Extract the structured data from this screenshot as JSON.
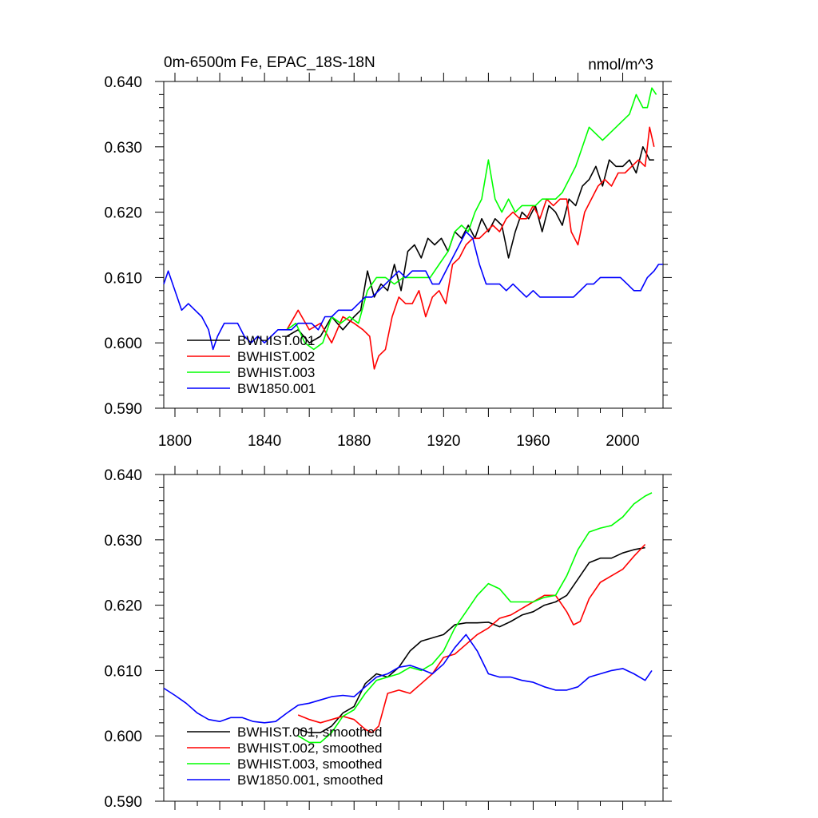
{
  "chart_data": [
    {
      "type": "line",
      "title": "0m-6500m Fe, EPAC_18S-18N",
      "units": "nmol/m^3",
      "xlim": [
        1795,
        2018
      ],
      "ylim": [
        0.59,
        0.64
      ],
      "xticks": [
        "1800",
        "1840",
        "1880",
        "1920",
        "1960",
        "2000"
      ],
      "yticks": [
        "0.590",
        "0.600",
        "0.610",
        "0.620",
        "0.630",
        "0.640"
      ],
      "legend_position": "bottom-left",
      "series": [
        {
          "name": "BWHIST.001",
          "color": "#000000",
          "x": [
            1850,
            1855,
            1860,
            1865,
            1870,
            1875,
            1880,
            1883,
            1886,
            1889,
            1892,
            1895,
            1898,
            1901,
            1904,
            1907,
            1910,
            1913,
            1916,
            1919,
            1922,
            1925,
            1928,
            1931,
            1934,
            1937,
            1940,
            1943,
            1946,
            1949,
            1952,
            1955,
            1958,
            1961,
            1964,
            1967,
            1970,
            1973,
            1976,
            1979,
            1982,
            1985,
            1988,
            1991,
            1994,
            1997,
            2000,
            2003,
            2006,
            2009,
            2012,
            2014
          ],
          "y": [
            0.601,
            0.602,
            0.6,
            0.601,
            0.604,
            0.602,
            0.604,
            0.605,
            0.611,
            0.607,
            0.609,
            0.608,
            0.612,
            0.608,
            0.614,
            0.615,
            0.613,
            0.616,
            0.615,
            0.616,
            0.614,
            0.617,
            0.616,
            0.618,
            0.616,
            0.619,
            0.617,
            0.619,
            0.618,
            0.613,
            0.617,
            0.62,
            0.619,
            0.621,
            0.617,
            0.621,
            0.62,
            0.618,
            0.622,
            0.621,
            0.624,
            0.625,
            0.627,
            0.624,
            0.628,
            0.627,
            0.627,
            0.628,
            0.626,
            0.63,
            0.628,
            0.628
          ]
        },
        {
          "name": "BWHIST.002",
          "color": "#ff0000",
          "x": [
            1850,
            1855,
            1860,
            1865,
            1870,
            1875,
            1880,
            1884,
            1887,
            1889,
            1891,
            1894,
            1897,
            1900,
            1903,
            1906,
            1909,
            1912,
            1915,
            1918,
            1921,
            1924,
            1927,
            1930,
            1933,
            1936,
            1939,
            1942,
            1945,
            1948,
            1951,
            1954,
            1957,
            1960,
            1963,
            1966,
            1969,
            1972,
            1975,
            1977,
            1980,
            1983,
            1986,
            1989,
            1992,
            1995,
            1998,
            2001,
            2004,
            2007,
            2010,
            2012,
            2014
          ],
          "y": [
            0.602,
            0.605,
            0.602,
            0.603,
            0.6,
            0.604,
            0.603,
            0.602,
            0.601,
            0.596,
            0.598,
            0.599,
            0.604,
            0.607,
            0.606,
            0.606,
            0.608,
            0.604,
            0.607,
            0.608,
            0.606,
            0.612,
            0.613,
            0.615,
            0.616,
            0.616,
            0.617,
            0.618,
            0.617,
            0.619,
            0.62,
            0.619,
            0.619,
            0.621,
            0.619,
            0.622,
            0.621,
            0.622,
            0.622,
            0.617,
            0.615,
            0.62,
            0.622,
            0.624,
            0.625,
            0.624,
            0.626,
            0.626,
            0.627,
            0.628,
            0.627,
            0.633,
            0.63
          ]
        },
        {
          "name": "BWHIST.003",
          "color": "#00ff00",
          "x": [
            1850,
            1854,
            1858,
            1862,
            1866,
            1870,
            1874,
            1878,
            1882,
            1886,
            1890,
            1894,
            1898,
            1902,
            1906,
            1910,
            1914,
            1918,
            1922,
            1925,
            1928,
            1931,
            1934,
            1937,
            1940,
            1943,
            1946,
            1949,
            1952,
            1955,
            1958,
            1961,
            1964,
            1967,
            1970,
            1973,
            1976,
            1979,
            1982,
            1985,
            1988,
            1991,
            1994,
            1997,
            2000,
            2003,
            2006,
            2009,
            2011,
            2013,
            2015
          ],
          "y": [
            0.602,
            0.603,
            0.6,
            0.599,
            0.6,
            0.604,
            0.603,
            0.604,
            0.603,
            0.608,
            0.61,
            0.61,
            0.609,
            0.61,
            0.61,
            0.61,
            0.61,
            0.612,
            0.614,
            0.617,
            0.618,
            0.617,
            0.62,
            0.622,
            0.628,
            0.622,
            0.62,
            0.622,
            0.62,
            0.621,
            0.621,
            0.621,
            0.622,
            0.622,
            0.622,
            0.623,
            0.625,
            0.627,
            0.63,
            0.633,
            0.632,
            0.631,
            0.632,
            0.633,
            0.634,
            0.635,
            0.638,
            0.636,
            0.636,
            0.639,
            0.638
          ]
        },
        {
          "name": "BW1850.001",
          "color": "#0000ff",
          "x": [
            1795,
            1797,
            1799,
            1801,
            1803,
            1806,
            1809,
            1812,
            1815,
            1817,
            1819,
            1822,
            1825,
            1828,
            1831,
            1834,
            1837,
            1840,
            1843,
            1846,
            1849,
            1852,
            1855,
            1858,
            1861,
            1864,
            1867,
            1870,
            1873,
            1876,
            1879,
            1882,
            1885,
            1888,
            1891,
            1894,
            1897,
            1900,
            1903,
            1906,
            1909,
            1912,
            1915,
            1918,
            1921,
            1924,
            1927,
            1930,
            1933,
            1936,
            1939,
            1942,
            1945,
            1948,
            1951,
            1954,
            1957,
            1960,
            1963,
            1966,
            1969,
            1972,
            1975,
            1978,
            1981,
            1984,
            1987,
            1990,
            1993,
            1996,
            1999,
            2002,
            2005,
            2008,
            2011,
            2014,
            2016,
            2018
          ],
          "y": [
            0.609,
            0.611,
            0.609,
            0.607,
            0.605,
            0.606,
            0.605,
            0.604,
            0.602,
            0.599,
            0.601,
            0.603,
            0.603,
            0.603,
            0.601,
            0.6,
            0.601,
            0.6,
            0.601,
            0.602,
            0.602,
            0.602,
            0.603,
            0.603,
            0.603,
            0.602,
            0.604,
            0.604,
            0.605,
            0.605,
            0.605,
            0.606,
            0.607,
            0.607,
            0.608,
            0.609,
            0.61,
            0.611,
            0.61,
            0.611,
            0.611,
            0.611,
            0.609,
            0.609,
            0.611,
            0.613,
            0.615,
            0.617,
            0.616,
            0.612,
            0.609,
            0.609,
            0.609,
            0.608,
            0.609,
            0.608,
            0.607,
            0.608,
            0.607,
            0.607,
            0.607,
            0.607,
            0.607,
            0.607,
            0.608,
            0.609,
            0.609,
            0.61,
            0.61,
            0.61,
            0.61,
            0.609,
            0.608,
            0.608,
            0.61,
            0.611,
            0.612,
            0.612
          ]
        }
      ]
    },
    {
      "type": "line",
      "xlim": [
        1795,
        2018
      ],
      "ylim": [
        0.59,
        0.64
      ],
      "yticks": [
        "0.590",
        "0.600",
        "0.610",
        "0.620",
        "0.630",
        "0.640"
      ],
      "legend_position": "bottom-left",
      "series": [
        {
          "name": "BWHIST.001, smoothed",
          "color": "#000000",
          "x": [
            1855,
            1860,
            1865,
            1870,
            1875,
            1880,
            1885,
            1890,
            1895,
            1900,
            1905,
            1910,
            1915,
            1920,
            1925,
            1930,
            1935,
            1940,
            1945,
            1950,
            1955,
            1960,
            1965,
            1970,
            1975,
            1980,
            1985,
            1990,
            1995,
            2000,
            2005,
            2010
          ],
          "y": [
            0.601,
            0.6005,
            0.6005,
            0.6015,
            0.6035,
            0.6045,
            0.608,
            0.6095,
            0.609,
            0.6105,
            0.613,
            0.6145,
            0.615,
            0.6155,
            0.617,
            0.6173,
            0.6173,
            0.6174,
            0.6167,
            0.6175,
            0.6185,
            0.619,
            0.62,
            0.6205,
            0.6215,
            0.624,
            0.6265,
            0.6272,
            0.6272,
            0.628,
            0.6285,
            0.6288
          ]
        },
        {
          "name": "BWHIST.002, smoothed",
          "color": "#ff0000",
          "x": [
            1855,
            1860,
            1865,
            1870,
            1875,
            1880,
            1885,
            1888,
            1891,
            1895,
            1900,
            1905,
            1910,
            1915,
            1920,
            1925,
            1930,
            1935,
            1940,
            1945,
            1950,
            1955,
            1960,
            1965,
            1970,
            1975,
            1978,
            1981,
            1985,
            1990,
            1995,
            2000,
            2005,
            2010
          ],
          "y": [
            0.6032,
            0.6025,
            0.602,
            0.6025,
            0.603,
            0.6025,
            0.601,
            0.6005,
            0.6015,
            0.6065,
            0.607,
            0.6065,
            0.608,
            0.6095,
            0.612,
            0.6125,
            0.614,
            0.6155,
            0.6165,
            0.618,
            0.6185,
            0.6195,
            0.6205,
            0.6215,
            0.6215,
            0.619,
            0.617,
            0.6175,
            0.621,
            0.6235,
            0.6245,
            0.6255,
            0.6275,
            0.6293
          ]
        },
        {
          "name": "BWHIST.003, smoothed",
          "color": "#00ff00",
          "x": [
            1855,
            1860,
            1865,
            1870,
            1875,
            1880,
            1885,
            1890,
            1895,
            1900,
            1905,
            1910,
            1915,
            1920,
            1925,
            1930,
            1935,
            1940,
            1945,
            1950,
            1955,
            1960,
            1965,
            1970,
            1975,
            1980,
            1985,
            1990,
            1995,
            2000,
            2005,
            2010,
            2013
          ],
          "y": [
            0.6,
            0.599,
            0.599,
            0.6005,
            0.603,
            0.604,
            0.6065,
            0.6085,
            0.609,
            0.6095,
            0.6105,
            0.61,
            0.611,
            0.613,
            0.6165,
            0.619,
            0.6215,
            0.6233,
            0.6225,
            0.6205,
            0.6205,
            0.6205,
            0.6212,
            0.6215,
            0.6245,
            0.6285,
            0.6312,
            0.6318,
            0.6322,
            0.6335,
            0.6355,
            0.6367,
            0.6372
          ]
        },
        {
          "name": "BW1850.001, smoothed",
          "color": "#0000ff",
          "x": [
            1795,
            1800,
            1805,
            1810,
            1815,
            1820,
            1825,
            1830,
            1835,
            1840,
            1845,
            1850,
            1855,
            1860,
            1865,
            1870,
            1875,
            1880,
            1885,
            1890,
            1895,
            1900,
            1905,
            1910,
            1915,
            1920,
            1925,
            1930,
            1935,
            1940,
            1945,
            1950,
            1955,
            1960,
            1965,
            1970,
            1975,
            1980,
            1985,
            1990,
            1995,
            2000,
            2005,
            2010,
            2013
          ],
          "y": [
            0.6073,
            0.6062,
            0.605,
            0.6035,
            0.6025,
            0.6022,
            0.6028,
            0.6028,
            0.6022,
            0.602,
            0.6022,
            0.6035,
            0.6047,
            0.605,
            0.6055,
            0.606,
            0.6062,
            0.606,
            0.6075,
            0.609,
            0.6095,
            0.6105,
            0.6108,
            0.6102,
            0.6095,
            0.611,
            0.6135,
            0.6155,
            0.613,
            0.6095,
            0.609,
            0.609,
            0.6085,
            0.6082,
            0.6075,
            0.607,
            0.607,
            0.6075,
            0.609,
            0.6095,
            0.61,
            0.6103,
            0.6095,
            0.6085,
            0.61
          ]
        }
      ]
    }
  ]
}
